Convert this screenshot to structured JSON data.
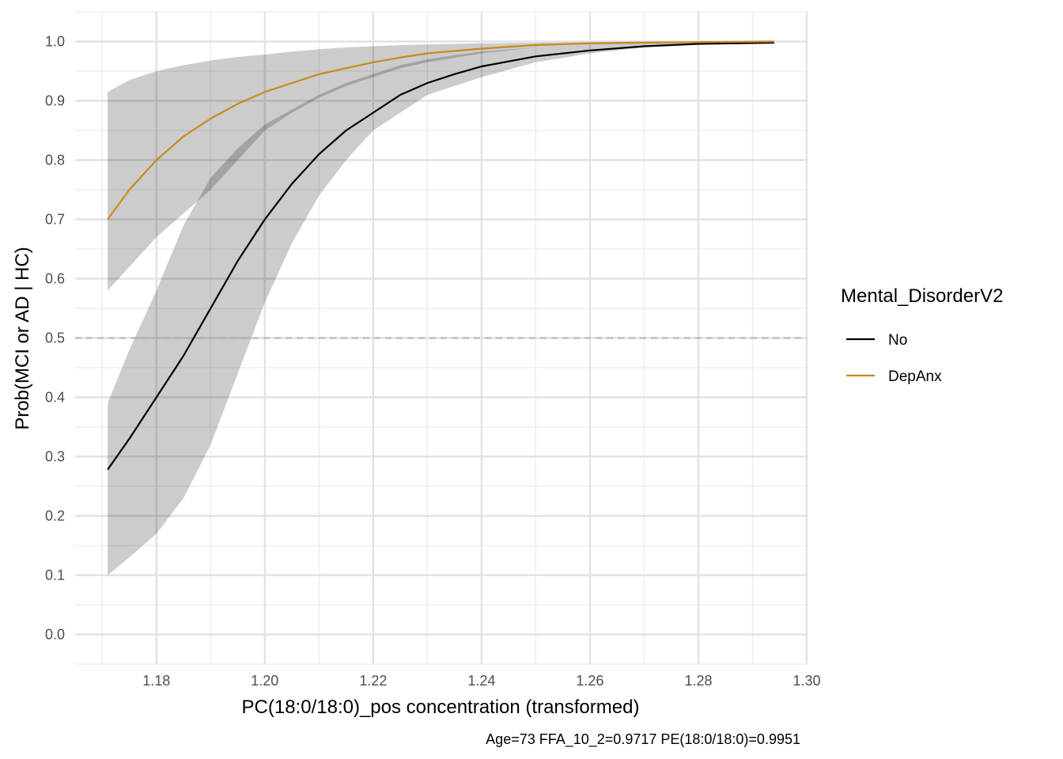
{
  "chart_data": {
    "type": "line",
    "xlabel": "PC(18:0/18:0)_pos concentration (transformed)",
    "ylabel": "Prob(MCI or AD | HC)",
    "caption": "Age=73  FFA_10_2=0.9717  PE(18:0/18:0)=0.9951",
    "xlim": [
      1.165,
      1.3
    ],
    "ylim": [
      -0.05,
      1.05
    ],
    "x_ticks": [
      1.18,
      1.2,
      1.22,
      1.24,
      1.26,
      1.28,
      1.3
    ],
    "x_tick_labels": [
      "1.18",
      "1.20",
      "1.22",
      "1.24",
      "1.26",
      "1.28",
      "1.30"
    ],
    "y_ticks": [
      0.0,
      0.1,
      0.2,
      0.3,
      0.4,
      0.5,
      0.6,
      0.7,
      0.8,
      0.9,
      1.0
    ],
    "y_tick_labels": [
      "0.0",
      "0.1",
      "0.2",
      "0.3",
      "0.4",
      "0.5",
      "0.6",
      "0.7",
      "0.8",
      "0.9",
      "1.0"
    ],
    "reference_line": {
      "y": 0.5,
      "style": "dashed",
      "color": "#9aaec4"
    },
    "grid": true,
    "legend": {
      "title": "Mental_DisorderV2",
      "position": "right",
      "entries": [
        {
          "label": "No",
          "color": "#000000"
        },
        {
          "label": "DepAnx",
          "color": "#c98a1c"
        }
      ]
    },
    "series": [
      {
        "name": "No",
        "color": "#000000",
        "x": [
          1.171,
          1.175,
          1.18,
          1.185,
          1.19,
          1.195,
          1.2,
          1.205,
          1.21,
          1.215,
          1.22,
          1.225,
          1.23,
          1.235,
          1.24,
          1.25,
          1.26,
          1.27,
          1.28,
          1.294
        ],
        "y": [
          0.278,
          0.33,
          0.4,
          0.47,
          0.55,
          0.63,
          0.7,
          0.76,
          0.81,
          0.85,
          0.88,
          0.91,
          0.93,
          0.945,
          0.958,
          0.975,
          0.985,
          0.992,
          0.996,
          0.998
        ],
        "lower": [
          0.1,
          0.13,
          0.17,
          0.23,
          0.32,
          0.44,
          0.56,
          0.66,
          0.74,
          0.8,
          0.85,
          0.88,
          0.91,
          0.925,
          0.94,
          0.965,
          0.98,
          0.99,
          0.995,
          0.998
        ],
        "upper": [
          0.39,
          0.48,
          0.58,
          0.69,
          0.77,
          0.82,
          0.86,
          0.885,
          0.91,
          0.93,
          0.945,
          0.96,
          0.97,
          0.977,
          0.983,
          0.99,
          0.995,
          0.997,
          0.999,
          1.0
        ]
      },
      {
        "name": "DepAnx",
        "color": "#c98a1c",
        "x": [
          1.171,
          1.175,
          1.18,
          1.185,
          1.19,
          1.195,
          1.2,
          1.205,
          1.21,
          1.215,
          1.22,
          1.225,
          1.23,
          1.24,
          1.25,
          1.26,
          1.27,
          1.28,
          1.294
        ],
        "y": [
          0.7,
          0.75,
          0.8,
          0.84,
          0.87,
          0.895,
          0.915,
          0.93,
          0.945,
          0.955,
          0.965,
          0.973,
          0.98,
          0.988,
          0.994,
          0.997,
          0.998,
          0.999,
          1.0
        ],
        "lower": [
          0.58,
          0.62,
          0.67,
          0.71,
          0.75,
          0.8,
          0.85,
          0.88,
          0.905,
          0.925,
          0.94,
          0.955,
          0.965,
          0.98,
          0.99,
          0.995,
          0.997,
          0.999,
          1.0
        ],
        "upper": [
          0.915,
          0.935,
          0.95,
          0.96,
          0.968,
          0.974,
          0.978,
          0.983,
          0.987,
          0.99,
          0.992,
          0.994,
          0.995,
          0.997,
          0.998,
          0.999,
          1.0,
          1.0,
          1.0
        ]
      }
    ]
  }
}
